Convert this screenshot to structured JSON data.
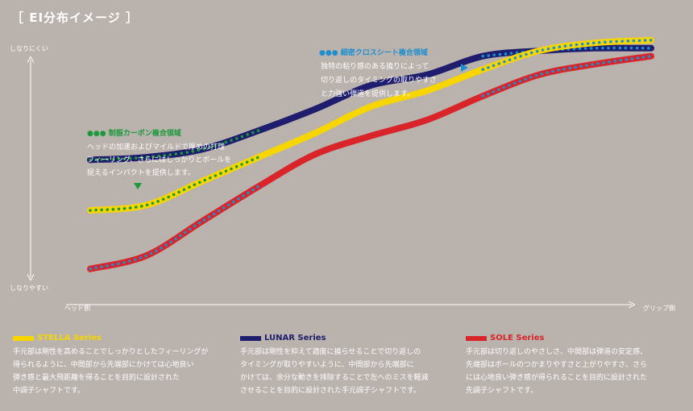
{
  "page": {
    "title": "［ EI分布イメージ ］"
  },
  "chart_data": {
    "type": "line",
    "y_axis": {
      "top_label": "しなりにくい",
      "bottom_label": "しなりやすい"
    },
    "x_axis": {
      "left_label": "ヘッド側",
      "right_label": "グリップ側"
    },
    "x": [
      0,
      0.1,
      0.2,
      0.3,
      0.4,
      0.5,
      0.6,
      0.7,
      0.8,
      0.9,
      1.0
    ],
    "series": [
      {
        "name": "LUNAR Series",
        "color": "#1f1d6e",
        "values": [
          0.52,
          0.53,
          0.56,
          0.63,
          0.71,
          0.8,
          0.84,
          0.91,
          0.93,
          0.94,
          0.94
        ]
      },
      {
        "name": "STELLA Series",
        "color": "#f7d600",
        "values": [
          0.33,
          0.35,
          0.44,
          0.53,
          0.62,
          0.72,
          0.78,
          0.86,
          0.93,
          0.96,
          0.97
        ]
      },
      {
        "name": "SOLE Series",
        "color": "#d9252a",
        "values": [
          0.11,
          0.16,
          0.29,
          0.42,
          0.54,
          0.61,
          0.67,
          0.76,
          0.84,
          0.88,
          0.91
        ]
      }
    ],
    "annotations": [
      {
        "heading": "●●● 制振カーボン複合領域",
        "color": "#1a9a3a",
        "lines": [
          "ヘッドの加速およびマイルドで厚めの打球",
          "フィーリング、さらにはしっかりとボールを",
          "捉えるインパクトを提供します。"
        ]
      },
      {
        "heading": "●●● 細密クロスシート複合領域",
        "color": "#1c8fd0",
        "lines": [
          "独特の粘り感のある撓りによって",
          "切り返しのタイミングの取りやすさ",
          "と力強い弾道を提供します。"
        ]
      }
    ]
  },
  "legend": [
    {
      "name": "STELLA Series",
      "color": "#f7d600",
      "lines": [
        "手元部は剛性を高めることでしっかりとしたフィーリングが",
        "得られるように、中間部から先端部にかけては心地良い",
        "弾き感と最大飛距離を得ることを目的に設計された",
        "中調子シャフトです。"
      ]
    },
    {
      "name": "LUNAR Series",
      "color": "#1f1d6e",
      "lines": [
        "手元部は剛性を抑えて適度に撓らせることで切り返しの",
        "タイミングが取りやすいように、中間部から先端部に",
        "かけては、余分な動きを排除することで左へのミスを軽減",
        "させることを目的に設計された手元調子シャフトです。"
      ]
    },
    {
      "name": "SOLE Series",
      "color": "#d9252a",
      "lines": [
        "手元部は切り返しのやさしさ、中間部は弾道の安定感、",
        "先端部はボールのつかまりやすさと上がりやすさ、さら",
        "には心地良い弾き感が得られることを目的に設計された",
        "先調子シャフトです。"
      ]
    }
  ]
}
